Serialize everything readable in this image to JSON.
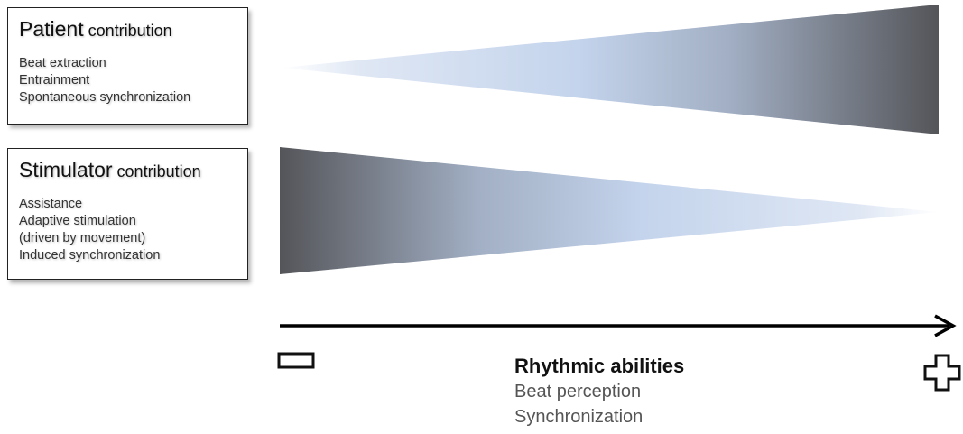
{
  "patient": {
    "title_main": "Patient",
    "title_rest": " contribution",
    "items": [
      "Beat extraction",
      "Entrainment",
      "Spontaneous synchronization"
    ]
  },
  "stimulator": {
    "title_main": "Stimulator",
    "title_rest": " contribution",
    "items": [
      "Assistance",
      "Adaptive stimulation",
      "(driven by movement)",
      "Induced synchronization"
    ]
  },
  "axis": {
    "title": "Rhythmic abilities",
    "subtitles": [
      "Beat perception",
      "Synchronization"
    ],
    "min_symbol": "minus-icon",
    "max_symbol": "plus-icon"
  },
  "colors": {
    "gradient_light": "#c4d4ec",
    "gradient_mid": "#a2afc4",
    "gradient_dark": "#545559",
    "arrow": "#000000"
  }
}
